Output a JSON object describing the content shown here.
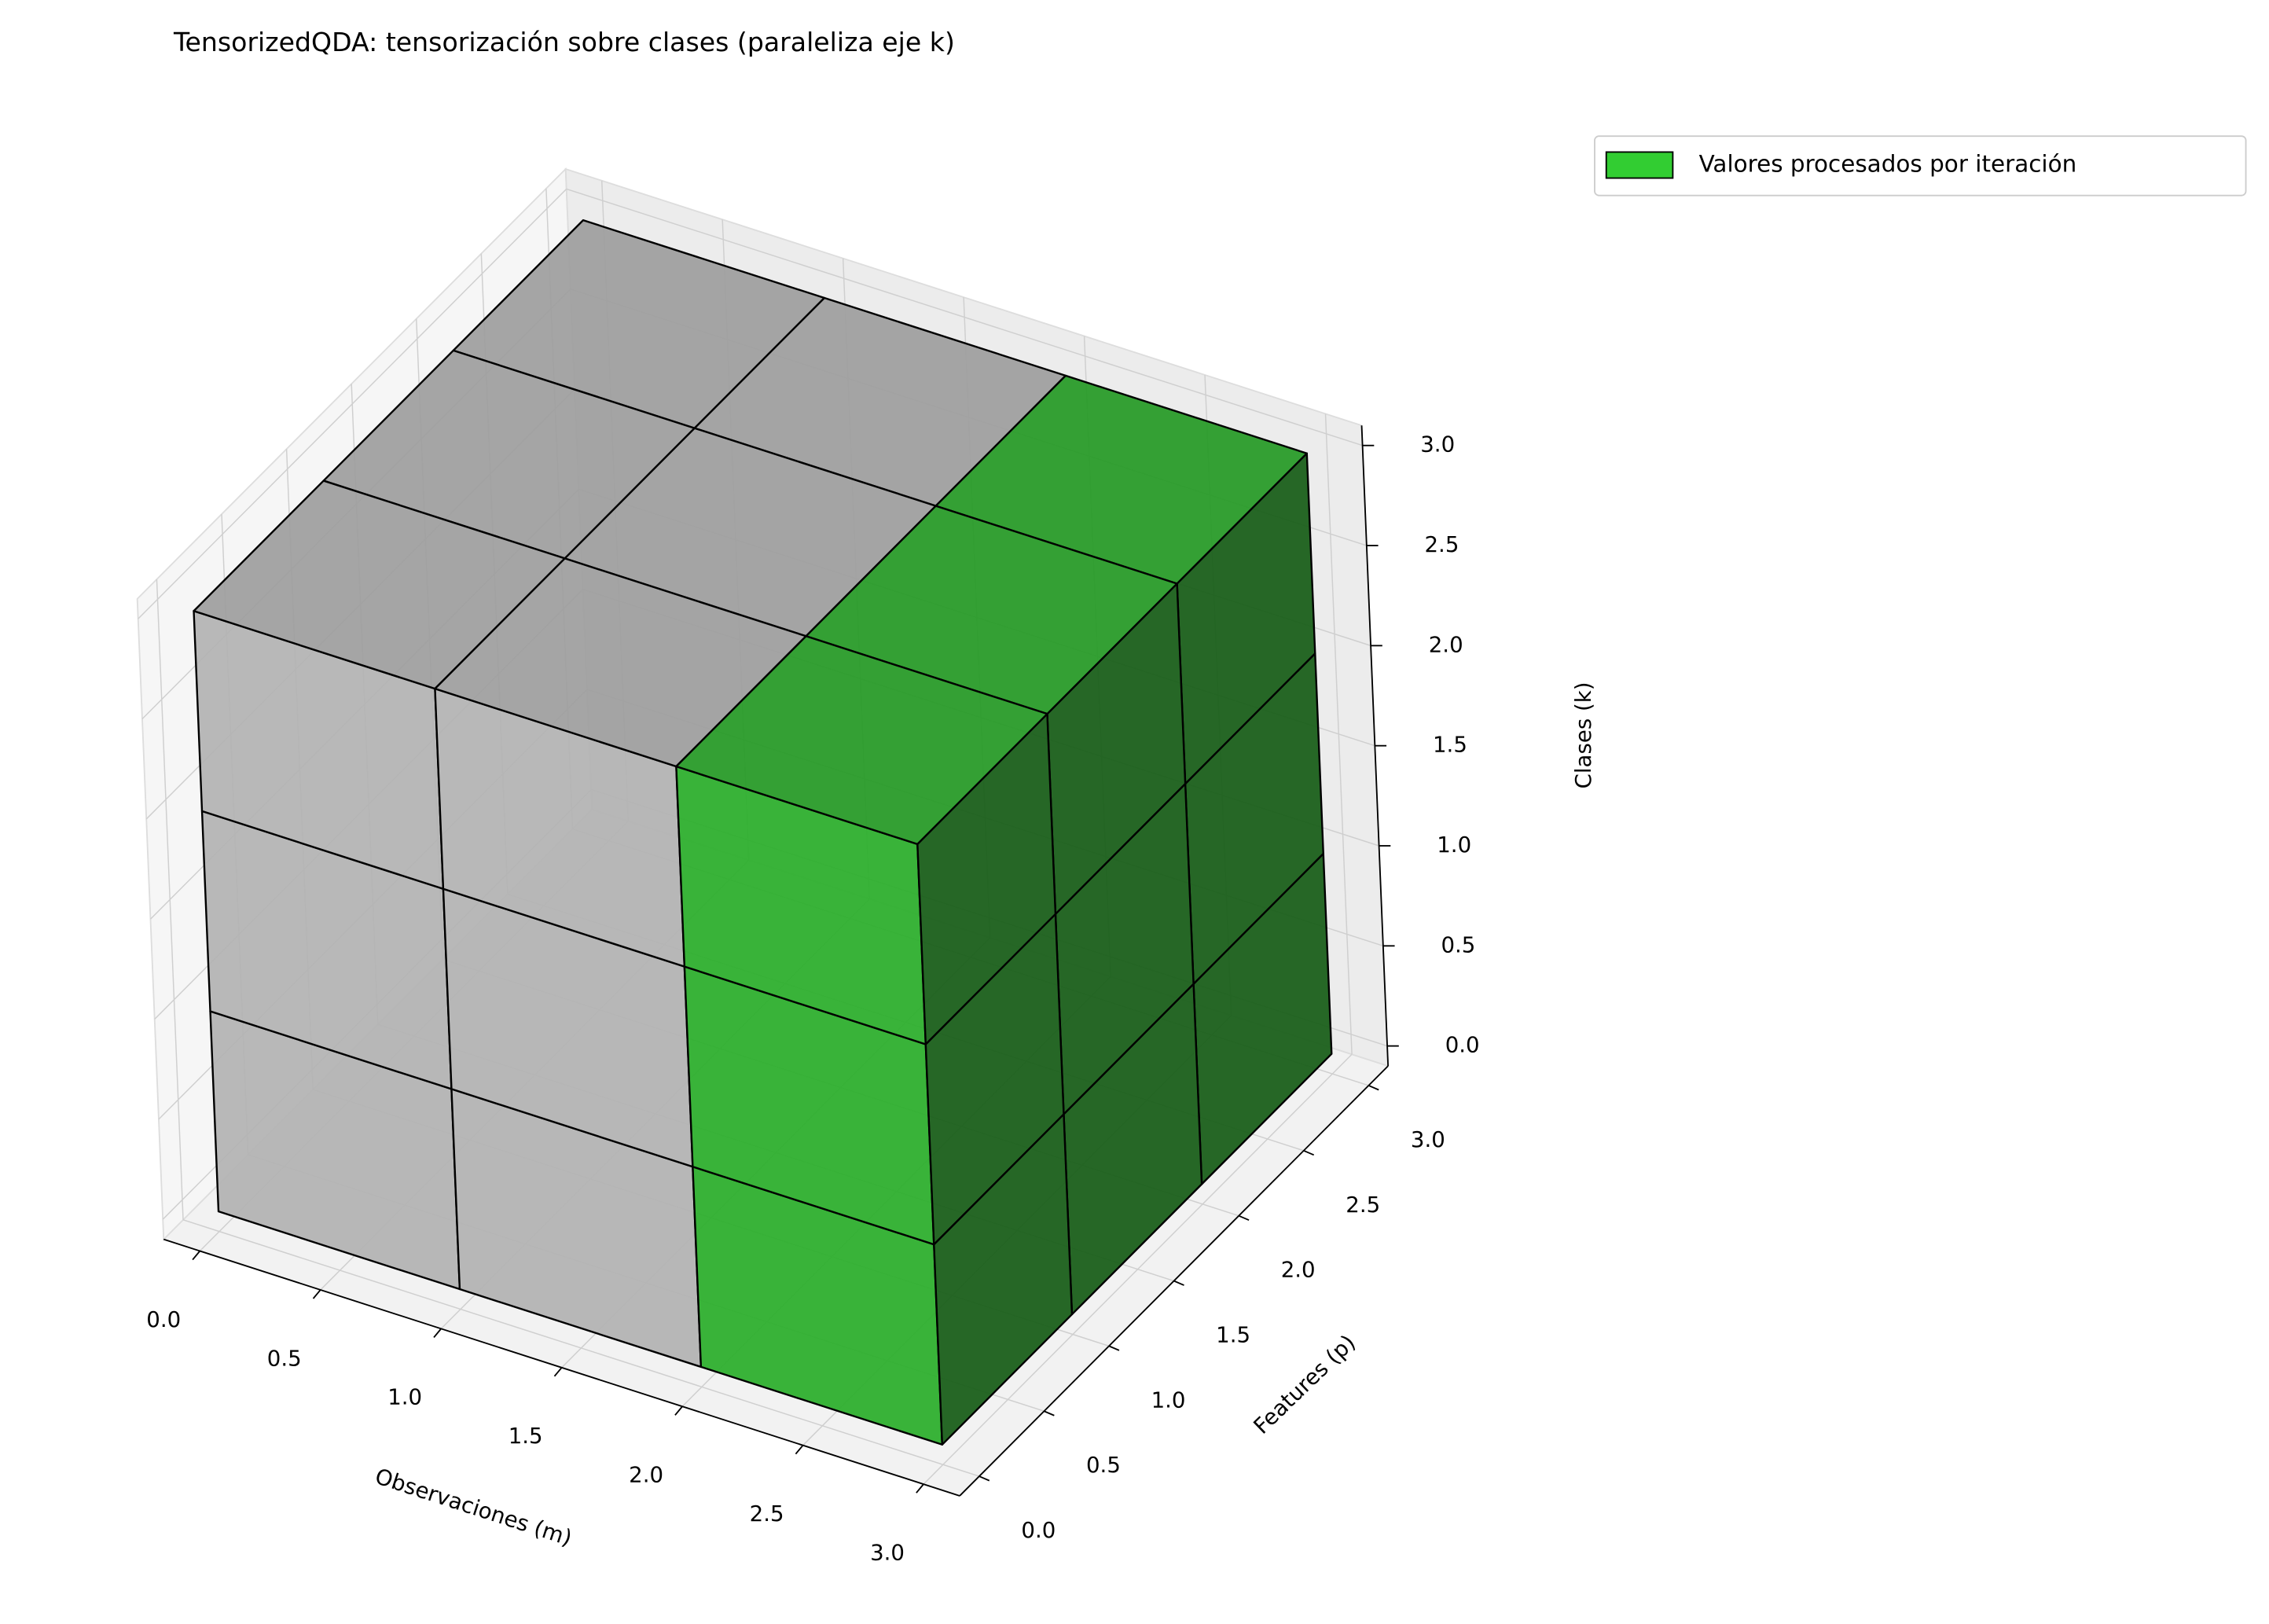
{
  "chart_data": {
    "type": "voxel3d",
    "title": "TensorizedQDA: tensorización sobre clases (paraleliza eje k)",
    "xlabel": "Observaciones (m)",
    "ylabel": "Features (p)",
    "zlabel": "Clases (k)",
    "voxel_grid": [
      3,
      3,
      3
    ],
    "base_color": "#d3d3d3",
    "series": [
      {
        "name": "Valores procesados por iteración",
        "color": "#32cd32",
        "x_range": [
          2,
          3
        ]
      }
    ],
    "xlim": [
      -0.15,
      3.15
    ],
    "ylim": [
      -0.15,
      3.15
    ],
    "zlim": [
      -0.1,
      3.1
    ],
    "xticks": [
      {
        "value": 0,
        "label": "0.0"
      },
      0.5,
      {
        "value": 1,
        "label": "1.0"
      },
      1.5,
      {
        "value": 2,
        "label": "2.0"
      },
      2.5,
      {
        "value": 3,
        "label": "3.0"
      }
    ],
    "yticks": [
      {
        "value": 0,
        "label": "0.0"
      },
      0.5,
      {
        "value": 1,
        "label": "1.0"
      },
      1.5,
      {
        "value": 2,
        "label": "2.0"
      },
      2.5,
      {
        "value": 3,
        "label": "3.0"
      }
    ],
    "zticks": [
      {
        "value": 0,
        "label": "0.0"
      },
      0.5,
      {
        "value": 1,
        "label": "1.0"
      },
      1.5,
      {
        "value": 2,
        "label": "2.0"
      },
      2.5,
      {
        "value": 3,
        "label": "3.0"
      }
    ],
    "grid": true,
    "legend": "upper right"
  }
}
